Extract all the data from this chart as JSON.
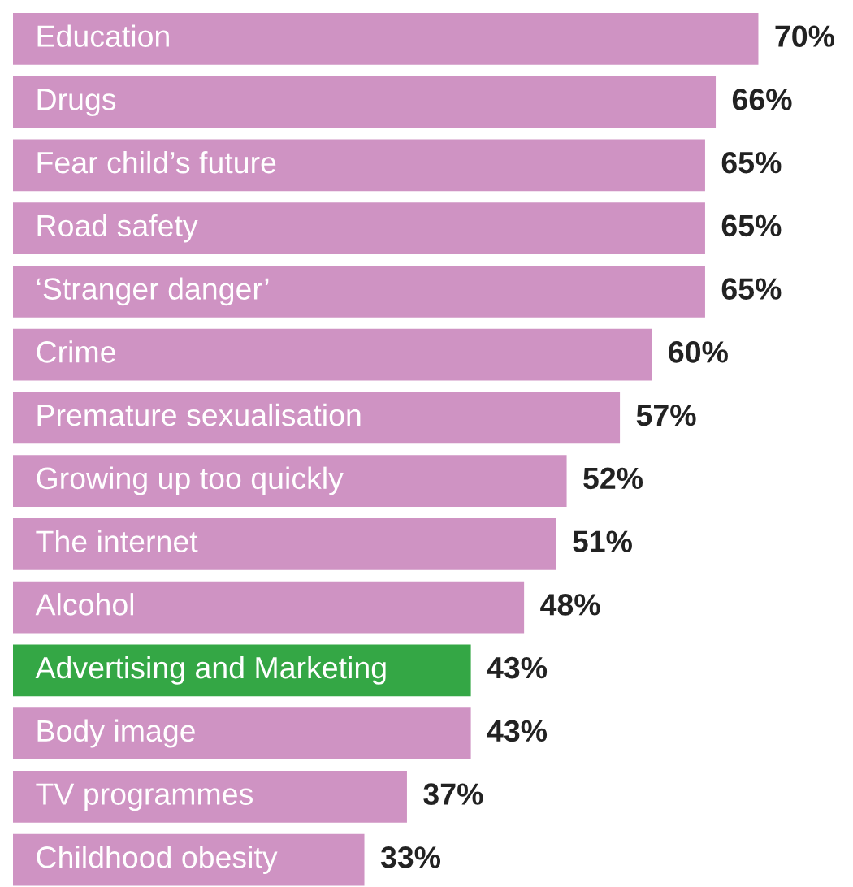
{
  "chart_data": {
    "type": "bar",
    "orientation": "horizontal",
    "categories": [
      "Education",
      "Drugs",
      "Fear child’s future",
      "Road safety",
      "‘Stranger danger’",
      "Crime",
      "Premature sexualisation",
      "Growing up too quickly",
      "The internet",
      "Alcohol",
      "Advertising and Marketing",
      "Body image",
      "TV programmes",
      "Childhood obesity"
    ],
    "values": [
      70,
      66,
      65,
      65,
      65,
      60,
      57,
      52,
      51,
      48,
      43,
      43,
      37,
      33
    ],
    "value_labels": [
      "70%",
      "66%",
      "65%",
      "65%",
      "65%",
      "60%",
      "57%",
      "52%",
      "51%",
      "48%",
      "43%",
      "43%",
      "37%",
      "33%"
    ],
    "colors": [
      "#cf93c3",
      "#cf93c3",
      "#cf93c3",
      "#cf93c3",
      "#cf93c3",
      "#cf93c3",
      "#cf93c3",
      "#cf93c3",
      "#cf93c3",
      "#cf93c3",
      "#34a745",
      "#cf93c3",
      "#cf93c3",
      "#cf93c3"
    ]
  }
}
